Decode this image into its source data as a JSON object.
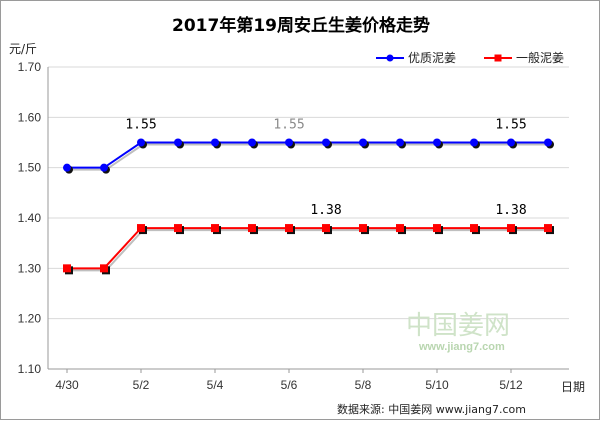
{
  "chart_data": {
    "type": "line",
    "title": "2017年第19周安丘生姜价格走势",
    "ylabel": "元/斤",
    "xlabel": "日期",
    "ylim": [
      1.1,
      1.7
    ],
    "yticks": [
      "1.70",
      "1.60",
      "1.50",
      "1.40",
      "1.30",
      "1.20",
      "1.10"
    ],
    "xticks": [
      "4/30",
      "5/2",
      "5/4",
      "5/6",
      "5/8",
      "5/10",
      "5/12"
    ],
    "x": [
      "4/30",
      "5/1",
      "5/2",
      "5/3",
      "5/4",
      "5/5",
      "5/6",
      "5/7",
      "5/8",
      "5/9",
      "5/10",
      "5/11",
      "5/12",
      "5/13"
    ],
    "grid": true,
    "legend_position": "top-right",
    "series": [
      {
        "name": "优质泥姜",
        "color": "#0000ff",
        "marker": "circle",
        "values": [
          1.5,
          1.5,
          1.55,
          1.55,
          1.55,
          1.55,
          1.55,
          1.55,
          1.55,
          1.55,
          1.55,
          1.55,
          1.55,
          1.55
        ]
      },
      {
        "name": "一般泥姜",
        "color": "#ff0000",
        "marker": "square",
        "values": [
          1.3,
          1.3,
          1.38,
          1.38,
          1.38,
          1.38,
          1.38,
          1.38,
          1.38,
          1.38,
          1.38,
          1.38,
          1.38,
          1.38
        ]
      }
    ],
    "data_labels": [
      {
        "series": 0,
        "index": 2,
        "text": "1.55",
        "muted": false
      },
      {
        "series": 0,
        "index": 6,
        "text": "1.55",
        "muted": true
      },
      {
        "series": 0,
        "index": 12,
        "text": "1.55",
        "muted": false
      },
      {
        "series": 1,
        "index": 7,
        "text": "1.38",
        "muted": false
      },
      {
        "series": 1,
        "index": 12,
        "text": "1.38",
        "muted": false
      }
    ]
  },
  "watermark": {
    "text": "中国姜网",
    "url": "www.jiang7.com"
  },
  "source": "数据来源: 中国姜网 www.jiang7.com"
}
